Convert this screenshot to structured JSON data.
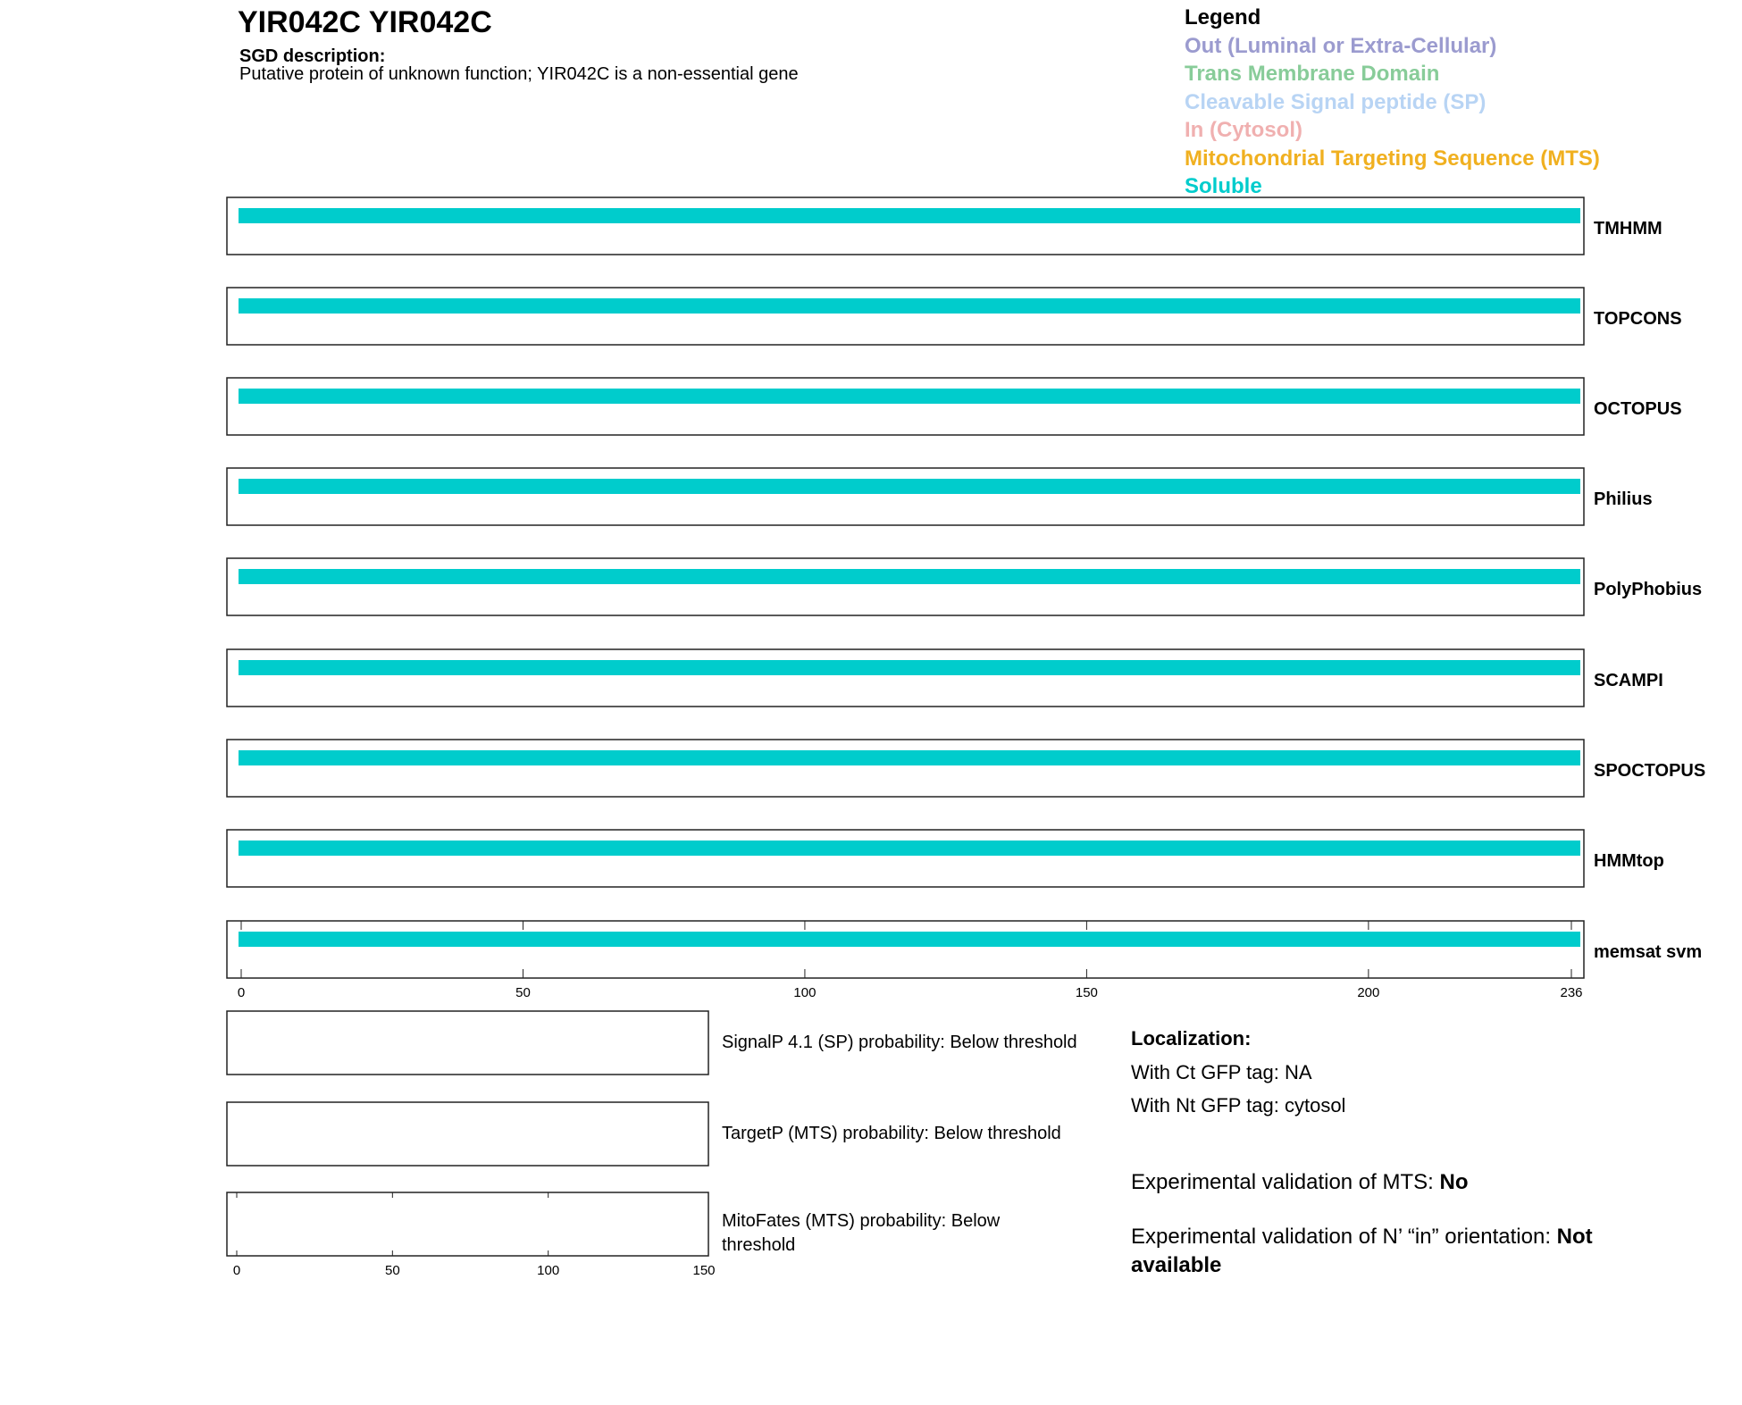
{
  "header": {
    "title": "YIR042C  YIR042C",
    "sgd_label": "SGD description:",
    "sgd_text": "Putative protein of unknown function; YIR042C is a non-essential gene"
  },
  "legend": {
    "title": "Legend",
    "items": [
      {
        "label": "Out (Luminal or Extra-Cellular)",
        "color": "#9b9bcf"
      },
      {
        "label": "Trans Membrane Domain",
        "color": "#88cc99"
      },
      {
        "label": "Cleavable Signal peptide (SP)",
        "color": "#b8d4f4"
      },
      {
        "label": "In (Cytosol)",
        "color": "#f0b0b0"
      },
      {
        "label": "Mitochondrial Targeting Sequence (MTS)",
        "color": "#f0b020"
      },
      {
        "label": "Soluble",
        "color": "#00cccc"
      }
    ]
  },
  "chart_data": [
    {
      "type": "bar",
      "description": "topology tracks",
      "xlim": [
        0,
        236
      ],
      "x_ticks": [
        "0",
        "50",
        "100",
        "150",
        "200",
        "236"
      ],
      "tracks": [
        {
          "name": "TMHMM",
          "segments": [
            {
              "start": 0,
              "end": 236,
              "class": "Soluble"
            }
          ]
        },
        {
          "name": "TOPCONS",
          "segments": [
            {
              "start": 0,
              "end": 236,
              "class": "Soluble"
            }
          ]
        },
        {
          "name": "OCTOPUS",
          "segments": [
            {
              "start": 0,
              "end": 236,
              "class": "Soluble"
            }
          ]
        },
        {
          "name": "Philius",
          "segments": [
            {
              "start": 0,
              "end": 236,
              "class": "Soluble"
            }
          ]
        },
        {
          "name": "PolyPhobius",
          "segments": [
            {
              "start": 0,
              "end": 236,
              "class": "Soluble"
            }
          ]
        },
        {
          "name": "SCAMPI",
          "segments": [
            {
              "start": 0,
              "end": 236,
              "class": "Soluble"
            }
          ]
        },
        {
          "name": "SPOCTOPUS",
          "segments": [
            {
              "start": 0,
              "end": 236,
              "class": "Soluble"
            }
          ]
        },
        {
          "name": "HMMtop",
          "segments": [
            {
              "start": 0,
              "end": 236,
              "class": "Soluble"
            }
          ]
        },
        {
          "name": "memsat svm",
          "segments": [
            {
              "start": 0,
              "end": 236,
              "class": "Soluble"
            }
          ]
        }
      ]
    },
    {
      "type": "line",
      "xlim": [
        0,
        150
      ],
      "x_ticks": [
        "0",
        "50",
        "100",
        "150"
      ],
      "panels": [
        {
          "label": "SignalP 4.1 (SP) probability: Below threshold"
        },
        {
          "label": "TargetP (MTS) probability: Below threshold"
        },
        {
          "label": "MitoFates (MTS) probability: Below threshold"
        }
      ]
    }
  ],
  "localization": {
    "heading": "Localization:",
    "ct": "With Ct GFP tag: NA",
    "nt": "With Nt GFP tag: cytosol",
    "mts_label": "Experimental validation of MTS: ",
    "mts_value": "No",
    "orient_label": "Experimental validation of N’ “in” orientation: ",
    "orient_value": "Not available"
  }
}
